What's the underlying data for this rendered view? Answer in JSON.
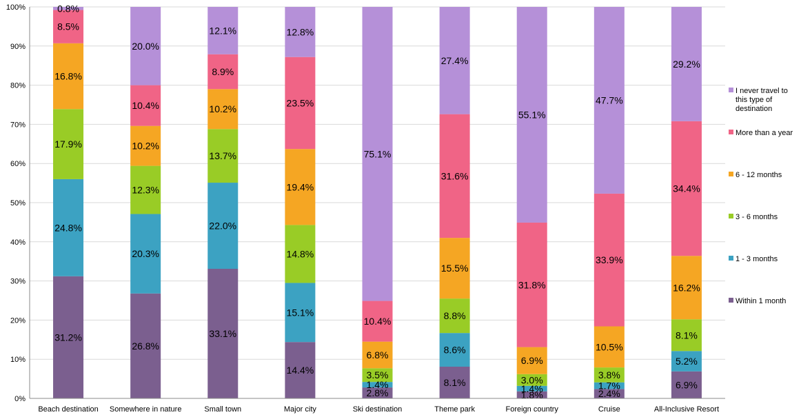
{
  "chart_data": {
    "type": "bar",
    "stacked": true,
    "percent_stacked": true,
    "categories": [
      "Beach destination",
      "Somewhere in nature",
      "Small town",
      "Major city",
      "Ski destination",
      "Theme park",
      "Foreign country",
      "Cruise",
      "All-Inclusive Resort"
    ],
    "series": [
      {
        "name": "Within 1 month",
        "color": "#7b5f8f",
        "values": [
          31.2,
          26.8,
          33.1,
          14.4,
          2.8,
          8.1,
          1.8,
          2.4,
          6.9
        ]
      },
      {
        "name": "1 - 3 months",
        "color": "#3ca2c2",
        "values": [
          24.8,
          20.3,
          22.0,
          15.1,
          1.4,
          8.6,
          1.4,
          1.7,
          5.2
        ]
      },
      {
        "name": "3 - 6 months",
        "color": "#99cc26",
        "values": [
          17.9,
          12.3,
          13.7,
          14.8,
          3.5,
          8.8,
          3.0,
          3.8,
          8.1
        ]
      },
      {
        "name": "6 - 12 months",
        "color": "#f5a623",
        "values": [
          16.8,
          10.2,
          10.2,
          19.4,
          6.8,
          15.5,
          6.9,
          10.5,
          16.2
        ]
      },
      {
        "name": "More than a year",
        "color": "#f06486",
        "values": [
          8.5,
          10.4,
          8.9,
          23.5,
          10.4,
          31.6,
          31.8,
          33.9,
          34.4
        ]
      },
      {
        "name": "I never travel to this type of destination",
        "color": "#b590d8",
        "values": [
          0.8,
          20.0,
          12.1,
          12.8,
          75.1,
          27.4,
          55.1,
          47.7,
          29.2
        ]
      }
    ],
    "yticks": [
      "0%",
      "10%",
      "20%",
      "30%",
      "40%",
      "50%",
      "60%",
      "70%",
      "80%",
      "90%",
      "100%"
    ],
    "ylim": [
      0,
      100
    ],
    "grid": true,
    "legend_position": "right"
  }
}
